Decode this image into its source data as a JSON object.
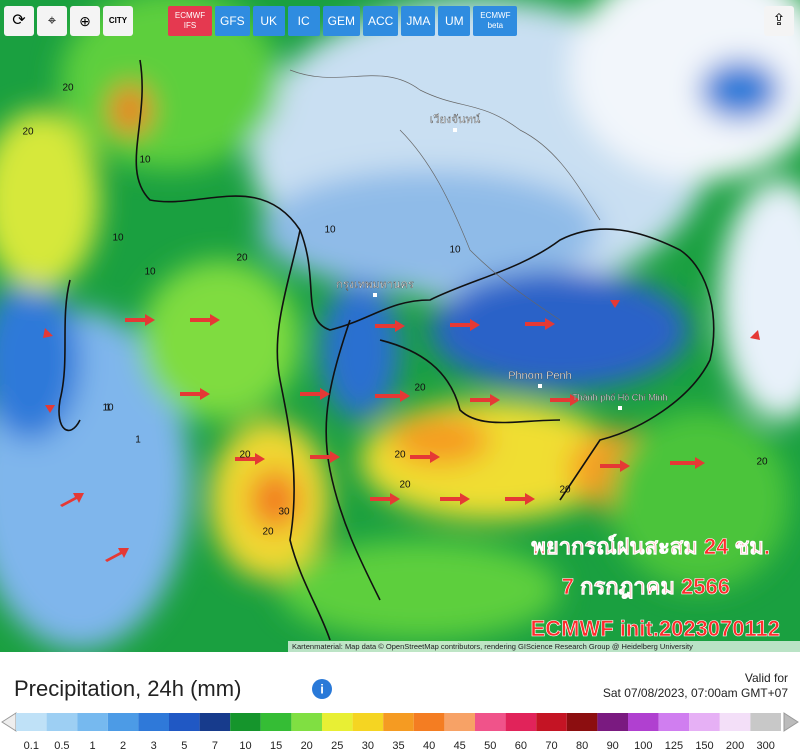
{
  "toolbar": {
    "city_button": "CITY"
  },
  "models": [
    "ECMWF IFS",
    "GFS",
    "UK",
    "IC",
    "GEM",
    "ACC",
    "JMA",
    "UM",
    "ECMWF beta"
  ],
  "map": {
    "places": [
      "กรุงเทพมหานคร",
      "เวียงจันทน์",
      "Phnom Penh",
      "Thành phố Hồ Chí Minh"
    ],
    "contour_labels": [
      "20",
      "20",
      "20",
      "10",
      "10",
      "10",
      "10",
      "1",
      "1",
      "20",
      "20",
      "20",
      "30",
      "20",
      "10",
      "10",
      "20",
      "20",
      "20"
    ],
    "overlay": [
      "พยากรณ์ฝนสะสม 24 ชม.",
      "7 กรกฎาคม 2566",
      "ECMWF init.2023070112"
    ],
    "attribution": "Kartenmaterial: Map data © OpenStreetMap contributors, rendering GIScience Research Group @ Heidelberg University"
  },
  "panel": {
    "title": "Precipitation, 24h (mm)",
    "valid_label": "Valid for",
    "valid_time": "Sat 07/08/2023, 07:00am GMT+07"
  },
  "legend": {
    "values": [
      0.1,
      0.5,
      1,
      2,
      3,
      5,
      7,
      10,
      15,
      20,
      25,
      30,
      35,
      40,
      45,
      50,
      60,
      70,
      80,
      90,
      100,
      125,
      150,
      200,
      300
    ],
    "colors": [
      "#bfe1f7",
      "#9dcff3",
      "#76b9ef",
      "#4c9be6",
      "#2f79d9",
      "#2058c4",
      "#173b8c",
      "#15952c",
      "#35bd35",
      "#80df42",
      "#e8ef34",
      "#f5d522",
      "#f59b22",
      "#f47d22",
      "#f7a266",
      "#f0538a",
      "#e1235a",
      "#c41424",
      "#8c0e10",
      "#7a1a80",
      "#b040d0",
      "#d07ef0",
      "#e6b0f5",
      "#f3dff8",
      "#c8c8c8"
    ]
  }
}
